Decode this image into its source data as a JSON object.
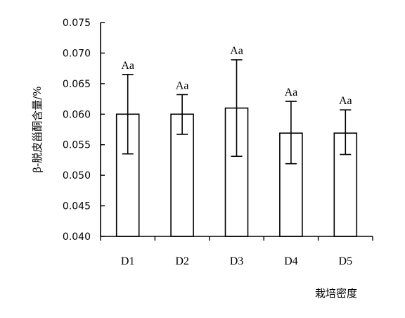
{
  "chart_data": {
    "type": "bar",
    "categories": [
      "D1",
      "D2",
      "D3",
      "D4",
      "D5"
    ],
    "values": [
      0.06,
      0.06,
      0.061,
      0.0569,
      0.0569
    ],
    "error_upper": [
      0.0665,
      0.0632,
      0.0689,
      0.0621,
      0.0607
    ],
    "error_lower": [
      0.0535,
      0.0567,
      0.0531,
      0.0519,
      0.0534
    ],
    "significance_labels": [
      "Aa",
      "Aa",
      "Aa",
      "Aa",
      "Aa"
    ],
    "title": "",
    "xlabel": "栽培密度",
    "ylabel": "β-脱皮甾酮含量/%",
    "ylim": [
      0.04,
      0.075
    ],
    "yticks": [
      "0.040",
      "0.045",
      "0.050",
      "0.055",
      "0.060",
      "0.065",
      "0.070",
      "0.075"
    ],
    "grid": false,
    "legend": "none"
  }
}
